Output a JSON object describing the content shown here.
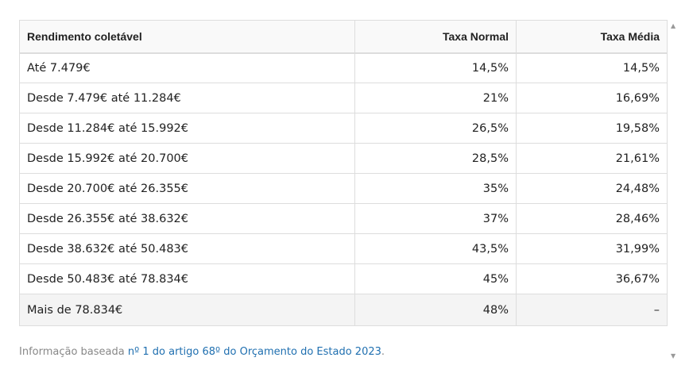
{
  "table": {
    "headers": [
      "Rendimento coletável",
      "Taxa Normal",
      "Taxa Média"
    ],
    "rows": [
      [
        "Até 7.479€",
        "14,5%",
        "14,5%"
      ],
      [
        "Desde 7.479€ até 11.284€",
        "21%",
        "16,69%"
      ],
      [
        "Desde 11.284€ até 15.992€",
        "26,5%",
        "19,58%"
      ],
      [
        "Desde 15.992€ até 20.700€",
        "28,5%",
        "21,61%"
      ],
      [
        "Desde 20.700€ até 26.355€",
        "35%",
        "24,48%"
      ],
      [
        "Desde 26.355€ até 38.632€",
        "37%",
        "28,46%"
      ],
      [
        "Desde 38.632€ até 50.483€",
        "43,5%",
        "31,99%"
      ],
      [
        "Desde 50.483€ até 78.834€",
        "45%",
        "36,67%"
      ],
      [
        "Mais de 78.834€",
        "48%",
        "–"
      ]
    ]
  },
  "note": {
    "prefix": "Informação baseada ",
    "link": "nº 1 do artigo 68º do Orçamento do Estado 2023",
    "suffix": "."
  },
  "scrollbar": {
    "up_icon": "▲",
    "down_icon": "▼"
  }
}
